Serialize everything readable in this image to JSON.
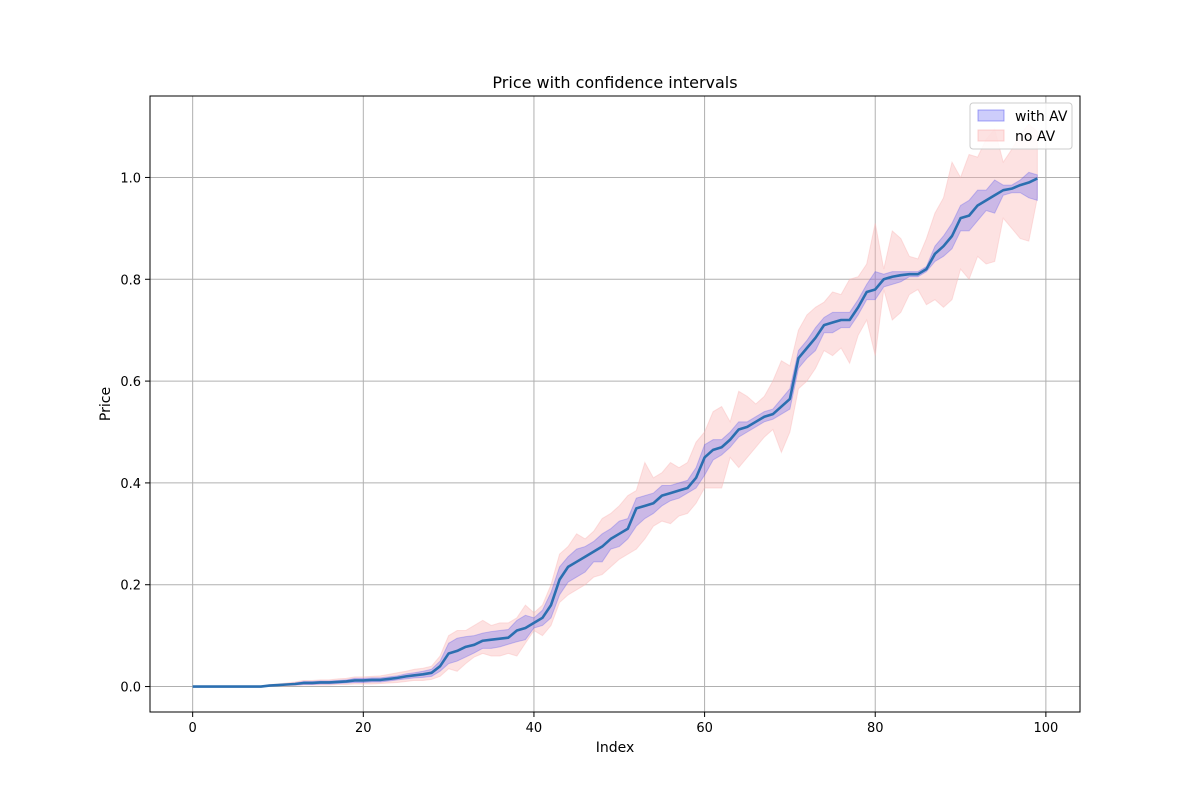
{
  "chart_data": {
    "type": "line",
    "title": "Price with confidence intervals",
    "xlabel": "Index",
    "ylabel": "Price",
    "xlim": [
      -5,
      104
    ],
    "ylim": [
      -0.05,
      1.16
    ],
    "xticks": [
      0,
      20,
      40,
      60,
      80,
      100
    ],
    "yticks": [
      0.0,
      0.2,
      0.4,
      0.6,
      0.8,
      1.0
    ],
    "xtick_labels": [
      "0",
      "20",
      "40",
      "60",
      "80",
      "100"
    ],
    "ytick_labels": [
      "0.0",
      "0.2",
      "0.4",
      "0.6",
      "0.8",
      "1.0"
    ],
    "grid": true,
    "legend_position": "top-right",
    "x": [
      0,
      1,
      2,
      3,
      4,
      5,
      6,
      7,
      8,
      9,
      10,
      11,
      12,
      13,
      14,
      15,
      16,
      17,
      18,
      19,
      20,
      21,
      22,
      23,
      24,
      25,
      26,
      27,
      28,
      29,
      30,
      31,
      32,
      33,
      34,
      35,
      36,
      37,
      38,
      39,
      40,
      41,
      42,
      43,
      44,
      45,
      46,
      47,
      48,
      49,
      50,
      51,
      52,
      53,
      54,
      55,
      56,
      57,
      58,
      59,
      60,
      61,
      62,
      63,
      64,
      65,
      66,
      67,
      68,
      69,
      70,
      71,
      72,
      73,
      74,
      75,
      76,
      77,
      78,
      79,
      80,
      81,
      82,
      83,
      84,
      85,
      86,
      87,
      88,
      89,
      90,
      91,
      92,
      93,
      94,
      95,
      96,
      97,
      98,
      99
    ],
    "series": [
      {
        "type": "line",
        "color": "#2b6fb0",
        "values": [
          0,
          0,
          0,
          0,
          0,
          0,
          0,
          0,
          0,
          0.002,
          0.003,
          0.004,
          0.005,
          0.007,
          0.007,
          0.008,
          0.008,
          0.009,
          0.01,
          0.012,
          0.012,
          0.013,
          0.013,
          0.015,
          0.017,
          0.02,
          0.022,
          0.024,
          0.027,
          0.04,
          0.065,
          0.07,
          0.078,
          0.082,
          0.09,
          0.092,
          0.094,
          0.096,
          0.11,
          0.115,
          0.125,
          0.135,
          0.16,
          0.21,
          0.235,
          0.245,
          0.255,
          0.265,
          0.275,
          0.29,
          0.3,
          0.31,
          0.35,
          0.355,
          0.36,
          0.375,
          0.38,
          0.385,
          0.39,
          0.41,
          0.45,
          0.465,
          0.47,
          0.485,
          0.505,
          0.51,
          0.52,
          0.53,
          0.535,
          0.55,
          0.565,
          0.645,
          0.665,
          0.685,
          0.71,
          0.715,
          0.72,
          0.72,
          0.745,
          0.775,
          0.78,
          0.8,
          0.805,
          0.808,
          0.81,
          0.81,
          0.82,
          0.85,
          0.865,
          0.885,
          0.92,
          0.925,
          0.945,
          0.955,
          0.965,
          0.975,
          0.978,
          0.985,
          0.99,
          0.998
        ]
      },
      {
        "name": "with AV",
        "type": "band",
        "color": "#4b4bf0",
        "opacity": 0.28,
        "lower": [
          0,
          0,
          0,
          0,
          0,
          0,
          0,
          0,
          0,
          0.001,
          0.002,
          0.003,
          0.003,
          0.004,
          0.004,
          0.005,
          0.005,
          0.006,
          0.007,
          0.008,
          0.008,
          0.009,
          0.009,
          0.011,
          0.013,
          0.015,
          0.017,
          0.018,
          0.02,
          0.03,
          0.045,
          0.05,
          0.058,
          0.066,
          0.075,
          0.075,
          0.078,
          0.083,
          0.088,
          0.092,
          0.115,
          0.12,
          0.135,
          0.18,
          0.205,
          0.215,
          0.225,
          0.245,
          0.245,
          0.27,
          0.275,
          0.29,
          0.315,
          0.33,
          0.34,
          0.355,
          0.365,
          0.37,
          0.38,
          0.39,
          0.415,
          0.445,
          0.455,
          0.47,
          0.49,
          0.5,
          0.51,
          0.52,
          0.525,
          0.535,
          0.545,
          0.625,
          0.645,
          0.66,
          0.695,
          0.695,
          0.705,
          0.705,
          0.73,
          0.76,
          0.76,
          0.785,
          0.79,
          0.795,
          0.805,
          0.805,
          0.815,
          0.835,
          0.845,
          0.86,
          0.895,
          0.895,
          0.915,
          0.935,
          0.93,
          0.965,
          0.97,
          0.97,
          0.96,
          0.955
        ]
      },
      {
        "type": "band-upper",
        "upper": [
          0,
          0,
          0,
          0,
          0,
          0,
          0,
          0,
          0,
          0.003,
          0.004,
          0.005,
          0.007,
          0.01,
          0.01,
          0.011,
          0.011,
          0.012,
          0.013,
          0.016,
          0.016,
          0.017,
          0.017,
          0.019,
          0.021,
          0.025,
          0.027,
          0.03,
          0.034,
          0.05,
          0.085,
          0.095,
          0.098,
          0.1,
          0.105,
          0.108,
          0.11,
          0.112,
          0.13,
          0.14,
          0.135,
          0.15,
          0.185,
          0.235,
          0.255,
          0.27,
          0.275,
          0.285,
          0.3,
          0.31,
          0.325,
          0.33,
          0.37,
          0.375,
          0.38,
          0.395,
          0.395,
          0.4,
          0.405,
          0.43,
          0.475,
          0.485,
          0.485,
          0.5,
          0.52,
          0.52,
          0.53,
          0.54,
          0.545,
          0.565,
          0.585,
          0.66,
          0.68,
          0.705,
          0.725,
          0.735,
          0.735,
          0.735,
          0.76,
          0.79,
          0.815,
          0.81,
          0.815,
          0.815,
          0.815,
          0.815,
          0.825,
          0.865,
          0.885,
          0.91,
          0.945,
          0.955,
          0.975,
          0.975,
          0.995,
          0.985,
          0.985,
          0.995,
          1.01,
          1.005
        ]
      },
      {
        "name": "no AV",
        "type": "band",
        "color": "#f9b3b3",
        "opacity": 0.38,
        "lower": [
          0,
          0,
          0,
          0,
          0,
          0,
          0,
          0,
          0,
          0,
          0.001,
          0.001,
          0.002,
          0.003,
          0.003,
          0.003,
          0.003,
          0.004,
          0.004,
          0.005,
          0.005,
          0.005,
          0.006,
          0.007,
          0.008,
          0.01,
          0.012,
          0.012,
          0.014,
          0.02,
          0.035,
          0.03,
          0.045,
          0.058,
          0.065,
          0.06,
          0.06,
          0.065,
          0.06,
          0.085,
          0.11,
          0.1,
          0.12,
          0.165,
          0.18,
          0.19,
          0.2,
          0.215,
          0.22,
          0.235,
          0.25,
          0.26,
          0.27,
          0.29,
          0.315,
          0.325,
          0.32,
          0.335,
          0.34,
          0.36,
          0.39,
          0.39,
          0.39,
          0.45,
          0.43,
          0.45,
          0.47,
          0.49,
          0.505,
          0.46,
          0.5,
          0.585,
          0.6,
          0.625,
          0.66,
          0.65,
          0.665,
          0.635,
          0.69,
          0.72,
          0.65,
          0.78,
          0.72,
          0.735,
          0.77,
          0.78,
          0.75,
          0.76,
          0.745,
          0.76,
          0.82,
          0.8,
          0.845,
          0.83,
          0.835,
          0.92,
          0.9,
          0.88,
          0.875,
          0.96
        ]
      },
      {
        "type": "band-upper",
        "upper": [
          0,
          0,
          0,
          0,
          0,
          0,
          0,
          0,
          0,
          0.004,
          0.005,
          0.007,
          0.009,
          0.012,
          0.012,
          0.013,
          0.013,
          0.015,
          0.016,
          0.019,
          0.019,
          0.02,
          0.021,
          0.024,
          0.027,
          0.03,
          0.034,
          0.036,
          0.04,
          0.06,
          0.1,
          0.11,
          0.11,
          0.12,
          0.13,
          0.12,
          0.125,
          0.125,
          0.135,
          0.16,
          0.145,
          0.16,
          0.2,
          0.26,
          0.275,
          0.3,
          0.29,
          0.305,
          0.33,
          0.34,
          0.355,
          0.375,
          0.385,
          0.44,
          0.41,
          0.42,
          0.44,
          0.43,
          0.44,
          0.48,
          0.5,
          0.54,
          0.55,
          0.52,
          0.58,
          0.57,
          0.555,
          0.57,
          0.6,
          0.64,
          0.63,
          0.7,
          0.73,
          0.745,
          0.755,
          0.775,
          0.77,
          0.8,
          0.805,
          0.83,
          0.91,
          0.82,
          0.895,
          0.88,
          0.845,
          0.84,
          0.88,
          0.93,
          0.96,
          1.03,
          1.0,
          1.045,
          1.04,
          1.075,
          1.095,
          1.03,
          1.055,
          1.085,
          1.105,
          1.09
        ]
      }
    ]
  }
}
